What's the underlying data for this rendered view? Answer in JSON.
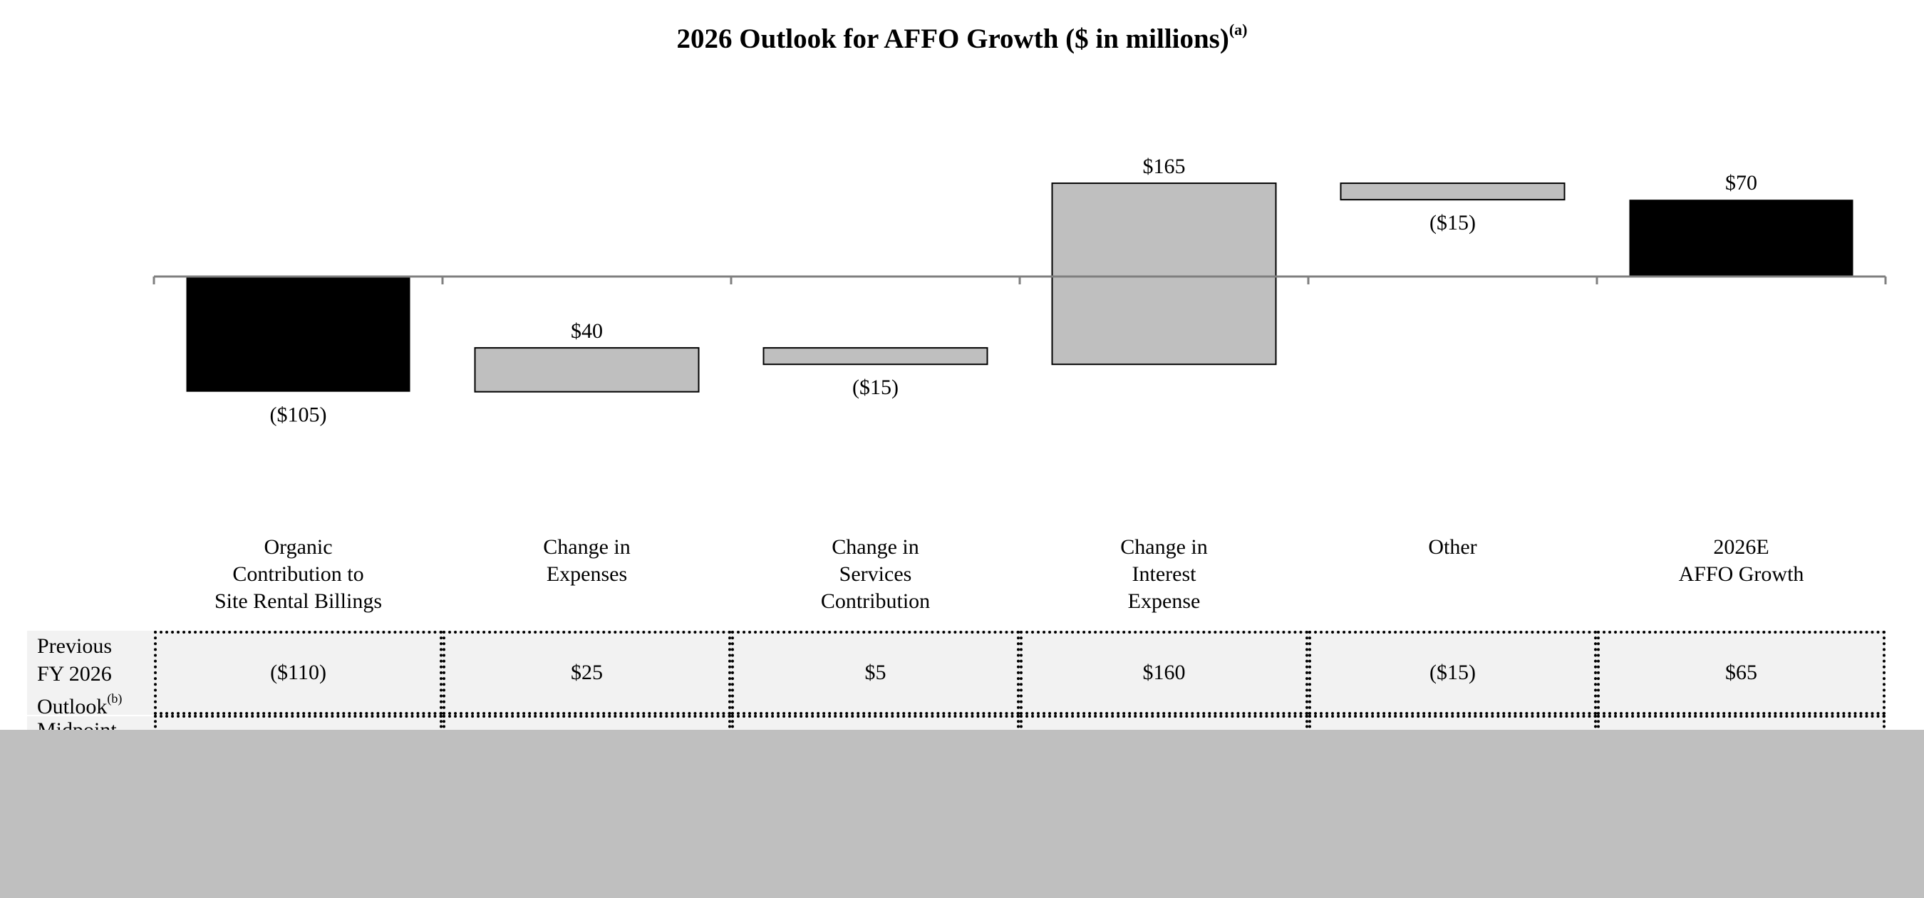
{
  "chart_data": {
    "type": "waterfall",
    "title": "2026 Outlook for AFFO Growth ($ in millions)",
    "title_superscript": "(a)",
    "categories": [
      "Organic\nContribution to\nSite Rental Billings",
      "Change in\nExpenses",
      "Change in\nServices\nContribution",
      "Change in\nInterest\nExpense",
      "Other",
      "2026E\nAFFO Growth"
    ],
    "values": [
      -105,
      40,
      -15,
      165,
      -15,
      70
    ],
    "value_labels": [
      "($105)",
      "$40",
      "($15)",
      "$165",
      "($15)",
      "$70"
    ],
    "bar_kinds": [
      "total",
      "delta",
      "delta",
      "delta",
      "delta",
      "total"
    ],
    "ylim": [
      -120,
      160
    ],
    "colors": {
      "total": "#000000",
      "delta": "#bfbfbf",
      "axis": "#7f7f7f"
    }
  },
  "table": {
    "rows": [
      {
        "header": "Previous\nFY 2026\nOutlook",
        "header_superscript": "(b)",
        "values": [
          "($110)",
          "$25",
          "$5",
          "$160",
          "($15)",
          "$65"
        ]
      },
      {
        "header": "Midpoint",
        "values": []
      }
    ]
  }
}
